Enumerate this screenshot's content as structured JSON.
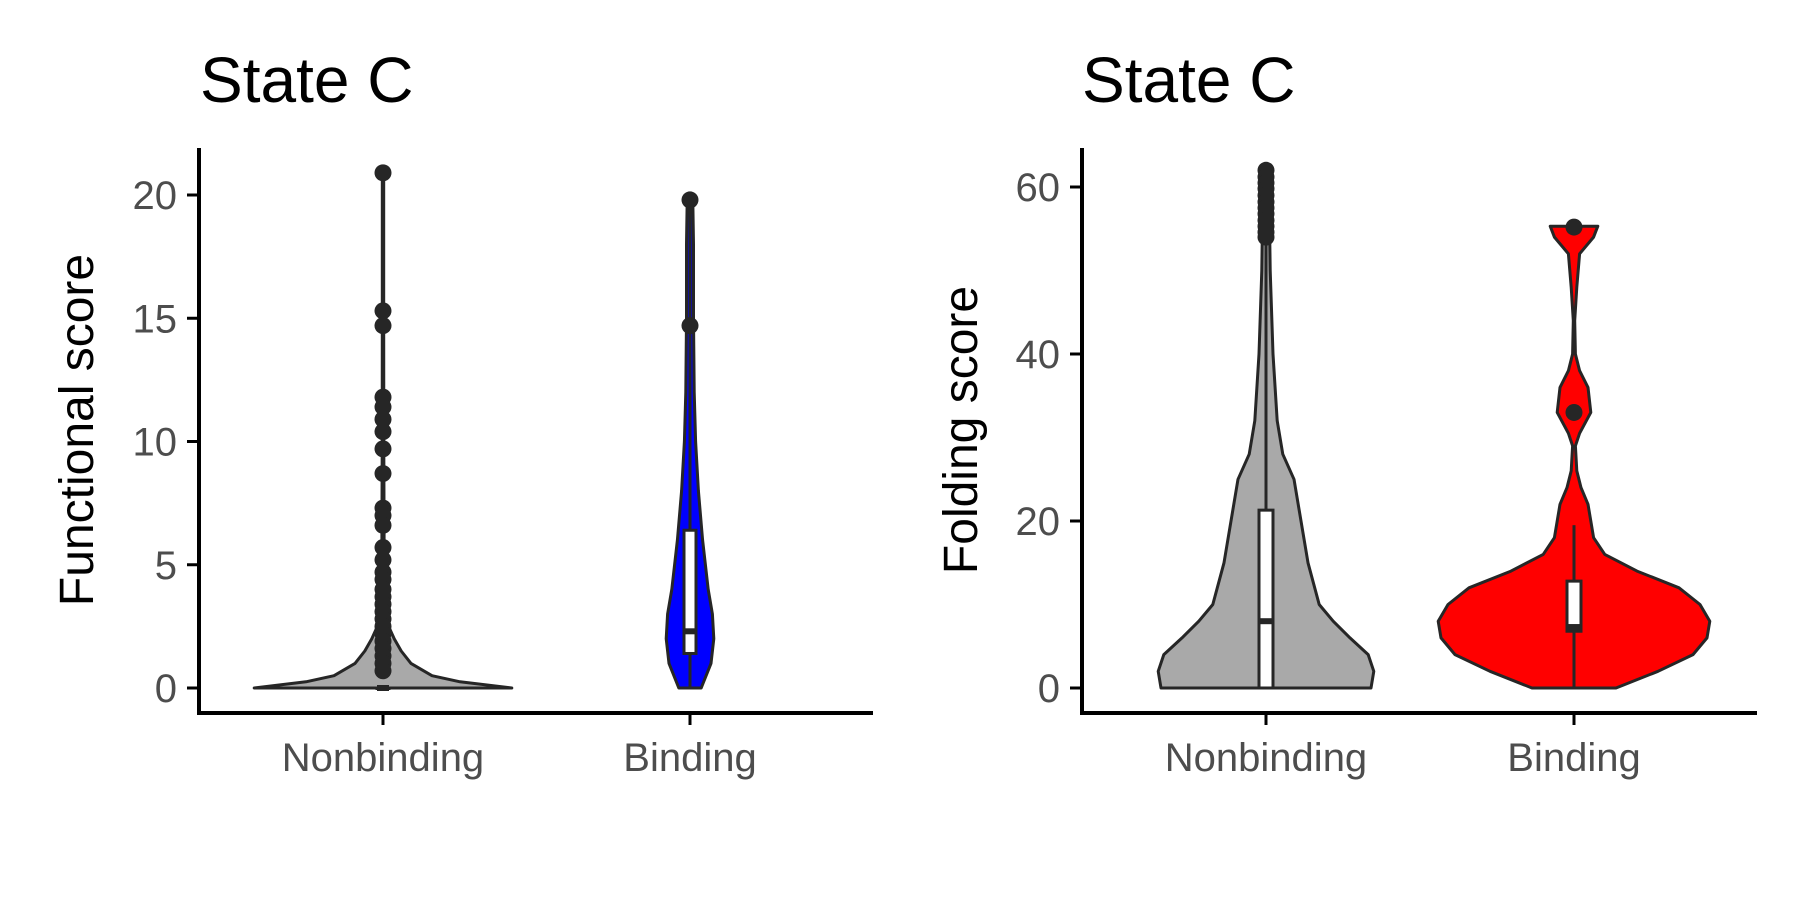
{
  "chart_data": [
    {
      "type": "violin",
      "title": "State C",
      "ylabel": "Functional score",
      "xlabel": "",
      "categories": [
        "Nonbinding",
        "Binding"
      ],
      "ylim": [
        -1,
        22
      ],
      "yticks": [
        0,
        5,
        10,
        15,
        20
      ],
      "grid": false,
      "legend": "none",
      "groups": [
        {
          "category": "Nonbinding",
          "fill": "#a9a9a9",
          "box": {
            "lower_whisker": 0,
            "q1": 0,
            "median": 0,
            "q3": 0,
            "upper_whisker": 0
          },
          "density": [
            [
              0,
              0.92
            ],
            [
              0.25,
              0.55
            ],
            [
              0.5,
              0.35
            ],
            [
              1,
              0.2
            ],
            [
              1.5,
              0.13
            ],
            [
              2,
              0.08
            ],
            [
              2.5,
              0.04
            ],
            [
              3,
              0.02
            ],
            [
              4,
              0.012
            ],
            [
              6,
              0.008
            ],
            [
              10,
              0.006
            ],
            [
              15,
              0.005
            ],
            [
              20.9,
              0.005
            ]
          ],
          "outliers": [
            20.9,
            15.3,
            14.7,
            11.8,
            11.4,
            10.9,
            10.4,
            9.7,
            8.7,
            7.3,
            7.0,
            6.6,
            5.7,
            5.2,
            4.7,
            4.4,
            4.0,
            3.7,
            3.4,
            3.1,
            2.8,
            2.5,
            2.2,
            1.9,
            1.6,
            1.3,
            1.0,
            0.7
          ]
        },
        {
          "category": "Binding",
          "fill": "#0000ff",
          "box": {
            "lower_whisker": 0,
            "q1": 1.4,
            "median": 2.3,
            "q3": 6.4,
            "upper_whisker": 19.6
          },
          "density": [
            [
              0,
              0.08
            ],
            [
              1,
              0.15
            ],
            [
              2,
              0.17
            ],
            [
              3,
              0.16
            ],
            [
              4,
              0.13
            ],
            [
              6,
              0.09
            ],
            [
              8,
              0.06
            ],
            [
              10,
              0.04
            ],
            [
              12,
              0.03
            ],
            [
              15,
              0.025
            ],
            [
              18,
              0.025
            ],
            [
              19.8,
              0.02
            ]
          ],
          "outliers": [
            19.8,
            14.7
          ]
        }
      ]
    },
    {
      "type": "violin",
      "title": "State C",
      "ylabel": "Folding score",
      "xlabel": "",
      "categories": [
        "Nonbinding",
        "Binding"
      ],
      "ylim": [
        -3,
        65
      ],
      "yticks": [
        0,
        20,
        40,
        60
      ],
      "grid": false,
      "legend": "none",
      "groups": [
        {
          "category": "Nonbinding",
          "fill": "#a9a9a9",
          "box": {
            "lower_whisker": 0,
            "q1": 0,
            "median": 8,
            "q3": 21.3,
            "upper_whisker": 53
          },
          "density": [
            [
              0,
              0.75
            ],
            [
              2,
              0.77
            ],
            [
              4,
              0.73
            ],
            [
              6,
              0.6
            ],
            [
              8,
              0.48
            ],
            [
              10,
              0.38
            ],
            [
              15,
              0.3
            ],
            [
              20,
              0.25
            ],
            [
              25,
              0.2
            ],
            [
              28,
              0.12
            ],
            [
              32,
              0.08
            ],
            [
              40,
              0.05
            ],
            [
              50,
              0.03
            ],
            [
              56,
              0.025
            ],
            [
              62,
              0.02
            ]
          ],
          "outliers": [
            62,
            61.2,
            60.5,
            59.8,
            59,
            58.2,
            57.5,
            56.8,
            56,
            55.3,
            54.6,
            54
          ]
        },
        {
          "category": "Binding",
          "fill": "#ff0000",
          "box": {
            "lower_whisker": 0,
            "q1": 6.8,
            "median": 7.3,
            "q3": 12.8,
            "upper_whisker": 19.5
          },
          "density": [
            [
              0,
              0.3
            ],
            [
              2,
              0.6
            ],
            [
              4,
              0.85
            ],
            [
              6,
              0.95
            ],
            [
              8,
              0.97
            ],
            [
              10,
              0.9
            ],
            [
              12,
              0.75
            ],
            [
              14,
              0.45
            ],
            [
              16,
              0.22
            ],
            [
              18,
              0.14
            ],
            [
              20,
              0.12
            ],
            [
              22,
              0.1
            ],
            [
              24,
              0.05
            ],
            [
              26,
              0.02
            ],
            [
              29,
              0.01
            ],
            [
              30.5,
              0.04
            ],
            [
              33,
              0.12
            ],
            [
              36,
              0.1
            ],
            [
              38,
              0.04
            ],
            [
              40,
              0.01
            ],
            [
              44,
              0.005
            ],
            [
              48,
              0.02
            ],
            [
              52,
              0.04
            ],
            [
              54,
              0.14
            ],
            [
              55.3,
              0.17
            ]
          ],
          "outliers": [
            55.2,
            33
          ]
        }
      ]
    }
  ]
}
